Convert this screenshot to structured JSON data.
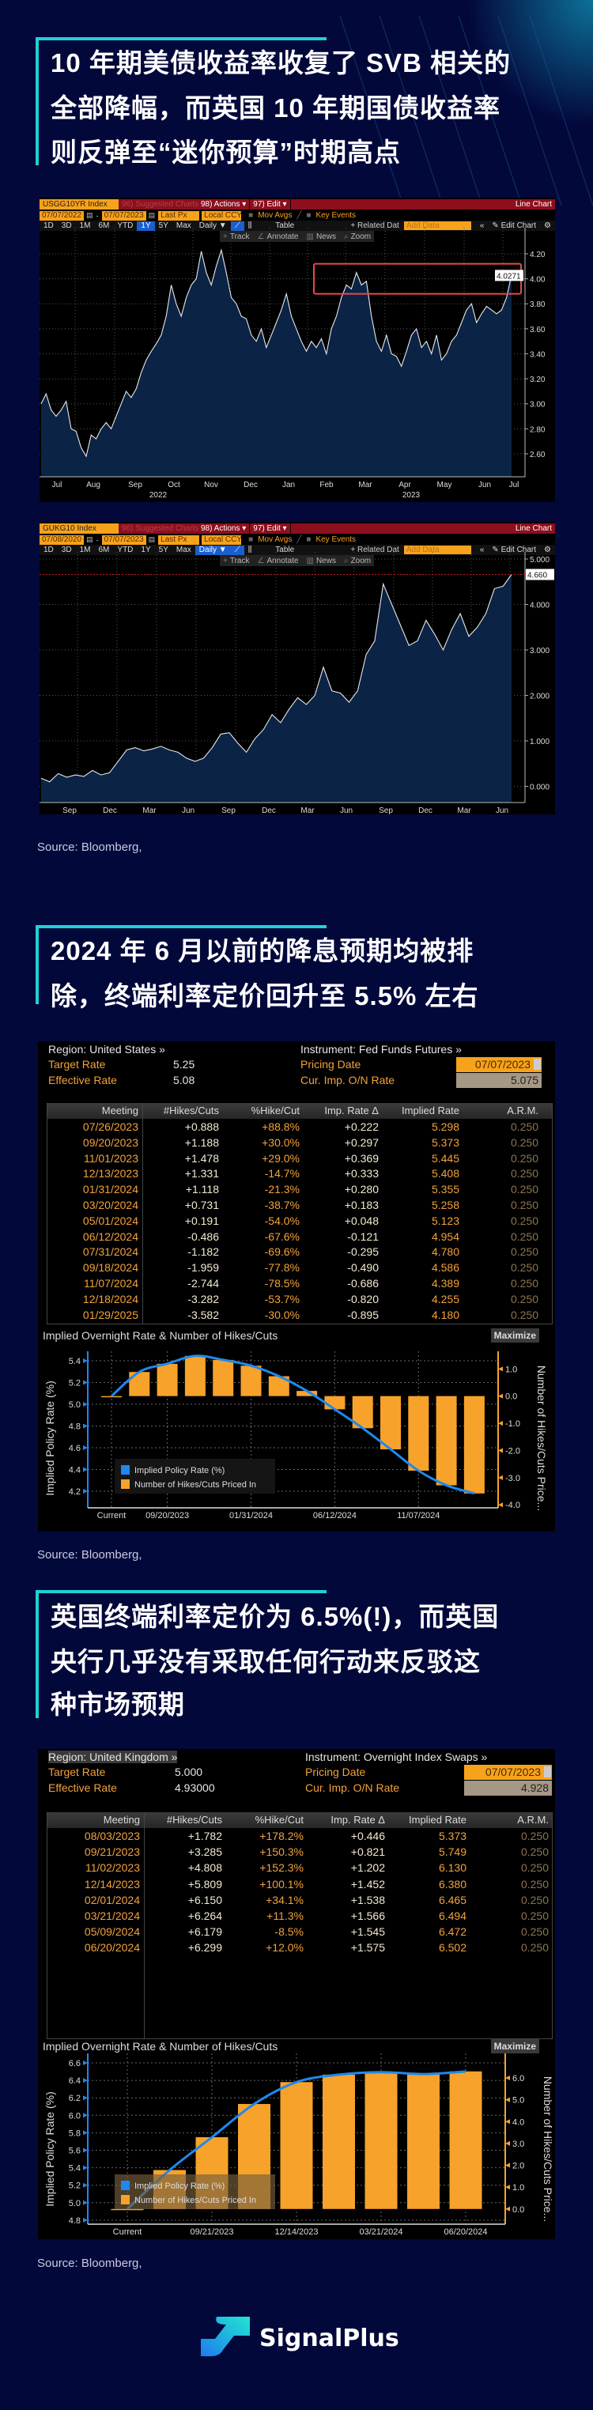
{
  "section1": {
    "title_lines": [
      "10 年期美债收益率收复了 SVB 相关的",
      "全部降幅，而英国 10 年期国债收益率",
      "则反弹至“迷你预算”时期高点"
    ],
    "source": "Source: Bloomberg,"
  },
  "section2": {
    "title_lines": [
      "2024 年 6 月以前的降息预期均被排",
      "除，终端利率定价回升至 5.5% 左右"
    ],
    "source": "Source: Bloomberg,"
  },
  "section3": {
    "title_lines": [
      "英国终端利率定价为 6.5%(!)，而英国",
      "央行几乎没有采取任何行动来反驳这",
      "种市场预期"
    ],
    "source": "Source: Bloomberg,"
  },
  "terminal_us": {
    "ticker": "USGG10YR Index",
    "suggested": "96) Suggested Charts",
    "actions": "98) Actions ▾",
    "edit": "97) Edit ▾",
    "chart_type": "Line Chart",
    "start_date": "07/07/2022",
    "end_date": "07/07/2023",
    "field": "Last Px",
    "currency": "Local CCY",
    "mov_avgs": "Mov Avgs",
    "key_events": "Key Events",
    "periods": [
      "1D",
      "3D",
      "1M",
      "6M",
      "YTD",
      "1Y",
      "5Y",
      "Max"
    ],
    "active_period": "1Y",
    "frequency": "Daily ▼",
    "table": "Table",
    "related": "+ Related Dat",
    "add_data": "Add Data",
    "edit_chart": "✎ Edit Chart",
    "tools": [
      "Track",
      "Annotate",
      "News",
      "Zoom"
    ],
    "last_value": "4.0271"
  },
  "terminal_uk": {
    "ticker": "GUKG10 Index",
    "suggested": "96) Suggested Charts",
    "actions": "98) Actions ▾",
    "edit": "97) Edit ▾",
    "chart_type": "Line Chart",
    "start_date": "07/08/2020",
    "end_date": "07/07/2023",
    "field": "Last Px",
    "currency": "Local CCY",
    "mov_avgs": "Mov Avgs",
    "key_events": "Key Events",
    "periods": [
      "1D",
      "3D",
      "1M",
      "6M",
      "YTD",
      "1Y",
      "5Y",
      "Max"
    ],
    "active_period": "Daily",
    "frequency": "Daily ▼",
    "table": "Table",
    "related": "+ Related Dat",
    "add_data": "Add Data",
    "edit_chart": "✎ Edit Chart",
    "tools": [
      "Track",
      "Annotate",
      "News",
      "Zoom"
    ],
    "last_value": "4.660"
  },
  "table_us": {
    "region": "Region: United States »",
    "instrument": "Instrument: Fed Funds Futures »",
    "target_label": "Target Rate",
    "target_value": "5.25",
    "effective_label": "Effective Rate",
    "effective_value": "5.08",
    "pricing_label": "Pricing Date",
    "pricing_date": "07/07/2023",
    "cur_label": "Cur. Imp. O/N Rate",
    "cur_value": "5.075",
    "columns": [
      "Meeting",
      "#Hikes/Cuts",
      "%Hike/Cut",
      "Imp. Rate Δ",
      "Implied Rate",
      "A.R.M."
    ],
    "rows": [
      [
        "07/26/2023",
        "+0.888",
        "+88.8%",
        "+0.222",
        "5.298",
        "0.250"
      ],
      [
        "09/20/2023",
        "+1.188",
        "+30.0%",
        "+0.297",
        "5.373",
        "0.250"
      ],
      [
        "11/01/2023",
        "+1.478",
        "+29.0%",
        "+0.369",
        "5.445",
        "0.250"
      ],
      [
        "12/13/2023",
        "+1.331",
        "-14.7%",
        "+0.333",
        "5.408",
        "0.250"
      ],
      [
        "01/31/2024",
        "+1.118",
        "-21.3%",
        "+0.280",
        "5.355",
        "0.250"
      ],
      [
        "03/20/2024",
        "+0.731",
        "-38.7%",
        "+0.183",
        "5.258",
        "0.250"
      ],
      [
        "05/01/2024",
        "+0.191",
        "-54.0%",
        "+0.048",
        "5.123",
        "0.250"
      ],
      [
        "06/12/2024",
        "-0.486",
        "-67.6%",
        "-0.121",
        "4.954",
        "0.250"
      ],
      [
        "07/31/2024",
        "-1.182",
        "-69.6%",
        "-0.295",
        "4.780",
        "0.250"
      ],
      [
        "09/18/2024",
        "-1.959",
        "-77.8%",
        "-0.490",
        "4.586",
        "0.250"
      ],
      [
        "11/07/2024",
        "-2.744",
        "-78.5%",
        "-0.686",
        "4.389",
        "0.250"
      ],
      [
        "12/18/2024",
        "-3.282",
        "-53.7%",
        "-0.820",
        "4.255",
        "0.250"
      ],
      [
        "01/29/2025",
        "-3.582",
        "-30.0%",
        "-0.895",
        "4.180",
        "0.250"
      ]
    ],
    "maximize": "Maximize"
  },
  "table_uk": {
    "region": "Region: United Kingdom »",
    "instrument": "Instrument: Overnight Index Swaps »",
    "target_label": "Target Rate",
    "target_value": "5.000",
    "effective_label": "Effective Rate",
    "effective_value": "4.93000",
    "pricing_label": "Pricing Date",
    "pricing_date": "07/07/2023",
    "cur_label": "Cur. Imp. O/N Rate",
    "cur_value": "4.928",
    "columns": [
      "Meeting",
      "#Hikes/Cuts",
      "%Hike/Cut",
      "Imp. Rate Δ",
      "Implied Rate",
      "A.R.M."
    ],
    "rows": [
      [
        "08/03/2023",
        "+1.782",
        "+178.2%",
        "+0.446",
        "5.373",
        "0.250"
      ],
      [
        "09/21/2023",
        "+3.285",
        "+150.3%",
        "+0.821",
        "5.749",
        "0.250"
      ],
      [
        "11/02/2023",
        "+4.808",
        "+152.3%",
        "+1.202",
        "6.130",
        "0.250"
      ],
      [
        "12/14/2023",
        "+5.809",
        "+100.1%",
        "+1.452",
        "6.380",
        "0.250"
      ],
      [
        "02/01/2024",
        "+6.150",
        "+34.1%",
        "+1.538",
        "6.465",
        "0.250"
      ],
      [
        "03/21/2024",
        "+6.264",
        "+11.3%",
        "+1.566",
        "6.494",
        "0.250"
      ],
      [
        "05/09/2024",
        "+6.179",
        "-8.5%",
        "+1.545",
        "6.472",
        "0.250"
      ],
      [
        "06/20/2024",
        "+6.299",
        "+12.0%",
        "+1.575",
        "6.502",
        "0.250"
      ]
    ],
    "maximize": "Maximize"
  },
  "chart_data": [
    {
      "type": "area",
      "series_ticker": "USGG10YR Index",
      "x_start": "07/07/2022",
      "x_end": "07/07/2023",
      "x_tick_labels": [
        "Jul",
        "Aug",
        "Sep",
        "Oct",
        "Nov",
        "Dec",
        "Jan",
        "Feb",
        "Mar",
        "Apr",
        "May",
        "Jun",
        "Jul"
      ],
      "year_labels": [
        "2022",
        "2023"
      ],
      "y_ticks": [
        "2.60",
        "2.80",
        "3.00",
        "3.20",
        "3.40",
        "3.60",
        "3.80",
        "4.00",
        "4.20"
      ],
      "ylim": [
        2.45,
        4.3
      ],
      "grid": true,
      "last_value": 4.0271,
      "highlight_box": {
        "x_from": "Feb 2023",
        "x_to": "Jul 2023",
        "y_from": 3.88,
        "y_to": 4.12
      },
      "values": [
        3.0,
        3.08,
        2.95,
        2.9,
        2.95,
        3.02,
        2.8,
        2.78,
        2.65,
        2.58,
        2.75,
        2.72,
        2.8,
        2.85,
        2.8,
        2.9,
        3.0,
        3.1,
        3.05,
        3.12,
        3.25,
        3.35,
        3.42,
        3.48,
        3.55,
        3.7,
        3.95,
        3.8,
        3.7,
        3.85,
        3.95,
        4.0,
        4.22,
        4.05,
        3.95,
        4.1,
        4.23,
        4.05,
        3.85,
        3.8,
        3.7,
        3.68,
        3.55,
        3.5,
        3.6,
        3.45,
        3.55,
        3.65,
        3.75,
        3.88,
        3.7,
        3.6,
        3.5,
        3.42,
        3.5,
        3.45,
        3.52,
        3.4,
        3.6,
        3.7,
        3.85,
        3.95,
        3.92,
        4.05,
        3.95,
        3.98,
        3.7,
        3.5,
        3.42,
        3.55,
        3.4,
        3.38,
        3.3,
        3.42,
        3.55,
        3.6,
        3.45,
        3.5,
        3.4,
        3.55,
        3.35,
        3.4,
        3.5,
        3.55,
        3.65,
        3.75,
        3.8,
        3.65,
        3.72,
        3.78,
        3.75,
        3.72,
        3.75,
        3.85,
        4.03
      ]
    },
    {
      "type": "area",
      "series_ticker": "GUKG10 Index",
      "x_start": "07/08/2020",
      "x_end": "07/07/2023",
      "x_tick_labels": [
        "Sep",
        "Dec",
        "Mar",
        "Jun",
        "Sep",
        "Dec",
        "Mar",
        "Jun",
        "Sep",
        "Dec",
        "Mar",
        "Jun"
      ],
      "y_ticks": [
        "0.000",
        "1.000",
        "2.000",
        "3.000",
        "4.000",
        "5.000"
      ],
      "ylim": [
        -0.35,
        5.2
      ],
      "grid": true,
      "last_value": 4.66,
      "values": [
        0.18,
        0.1,
        0.28,
        0.2,
        0.25,
        0.22,
        0.35,
        0.25,
        0.3,
        0.55,
        0.8,
        0.85,
        0.78,
        0.82,
        0.88,
        0.8,
        0.75,
        0.62,
        0.55,
        0.62,
        0.85,
        1.15,
        1.18,
        0.95,
        0.75,
        1.05,
        1.25,
        1.58,
        1.4,
        1.7,
        1.95,
        1.8,
        2.0,
        2.62,
        2.1,
        2.05,
        1.85,
        2.1,
        2.9,
        3.2,
        4.45,
        4.0,
        3.55,
        3.1,
        3.2,
        3.65,
        3.35,
        3.0,
        3.45,
        3.8,
        3.3,
        3.5,
        3.8,
        4.35,
        4.4,
        4.66
      ]
    },
    {
      "type": "bar+line",
      "title": "Implied Overnight Rate & Number of Hikes/Cuts",
      "categories": [
        "Current",
        "07/26/2023",
        "09/20/2023",
        "11/01/2023",
        "12/13/2023",
        "01/31/2024",
        "03/20/2024",
        "05/01/2024",
        "06/12/2024",
        "07/31/2024",
        "09/18/2024",
        "11/07/2024",
        "12/18/2024",
        "01/29/2025"
      ],
      "x_tick_labels": [
        "Current",
        "09/20/2023",
        "01/31/2024",
        "06/12/2024",
        "11/07/2024"
      ],
      "series": [
        {
          "name": "Implied Policy Rate (%)",
          "type": "line",
          "axis": "left",
          "color": "#1e88f0",
          "values": [
            5.075,
            5.298,
            5.373,
            5.445,
            5.408,
            5.355,
            5.258,
            5.123,
            4.954,
            4.78,
            4.586,
            4.389,
            4.255,
            4.18
          ]
        },
        {
          "name": "Number of Hikes/Cuts Priced In",
          "type": "bar",
          "axis": "right",
          "color": "#f7a22a",
          "values": [
            0,
            0.888,
            1.188,
            1.478,
            1.331,
            1.118,
            0.731,
            0.191,
            -0.486,
            -1.182,
            -1.959,
            -2.744,
            -3.282,
            -3.582
          ]
        }
      ],
      "ylabel_left": "Implied Policy Rate (%)",
      "ylabel_right": "Number of Hikes/Cuts Price...",
      "y_ticks_left": [
        "4.2",
        "4.4",
        "4.6",
        "4.8",
        "5.0",
        "5.2",
        "5.4"
      ],
      "y_ticks_right": [
        "-4.0",
        "-3.0",
        "-2.0",
        "-1.0",
        "0.0",
        "1.0"
      ],
      "legend": "bottom-left"
    },
    {
      "type": "bar+line",
      "title": "Implied Overnight Rate & Number of Hikes/Cuts",
      "categories": [
        "Current",
        "08/03/2023",
        "09/21/2023",
        "11/02/2023",
        "12/14/2023",
        "02/01/2024",
        "03/21/2024",
        "05/09/2024",
        "06/20/2024"
      ],
      "x_tick_labels": [
        "Current",
        "09/21/2023",
        "12/14/2023",
        "03/21/2024",
        "06/20/2024"
      ],
      "series": [
        {
          "name": "Implied Policy Rate (%)",
          "type": "line",
          "axis": "left",
          "color": "#1e88f0",
          "values": [
            4.928,
            5.373,
            5.749,
            6.13,
            6.38,
            6.465,
            6.494,
            6.472,
            6.502
          ]
        },
        {
          "name": "Number of Hikes/Cuts Priced In",
          "type": "bar",
          "axis": "right",
          "color": "#f7a22a",
          "values": [
            0,
            1.782,
            3.285,
            4.808,
            5.809,
            6.15,
            6.264,
            6.179,
            6.299
          ]
        }
      ],
      "ylabel_left": "Implied Policy Rate (%)",
      "ylabel_right": "Number of Hikes/Cuts Price...",
      "y_ticks_left": [
        "4.8",
        "5.0",
        "5.2",
        "5.4",
        "5.6",
        "5.8",
        "6.0",
        "6.2",
        "6.4",
        "6.6"
      ],
      "y_ticks_right": [
        "0.0",
        "1.0",
        "2.0",
        "3.0",
        "4.0",
        "5.0",
        "6.0"
      ],
      "legend": "bottom-left"
    }
  ],
  "brand": {
    "name": "SignalPlus",
    "accent": "#1fd1d6",
    "background": "#03083b"
  }
}
